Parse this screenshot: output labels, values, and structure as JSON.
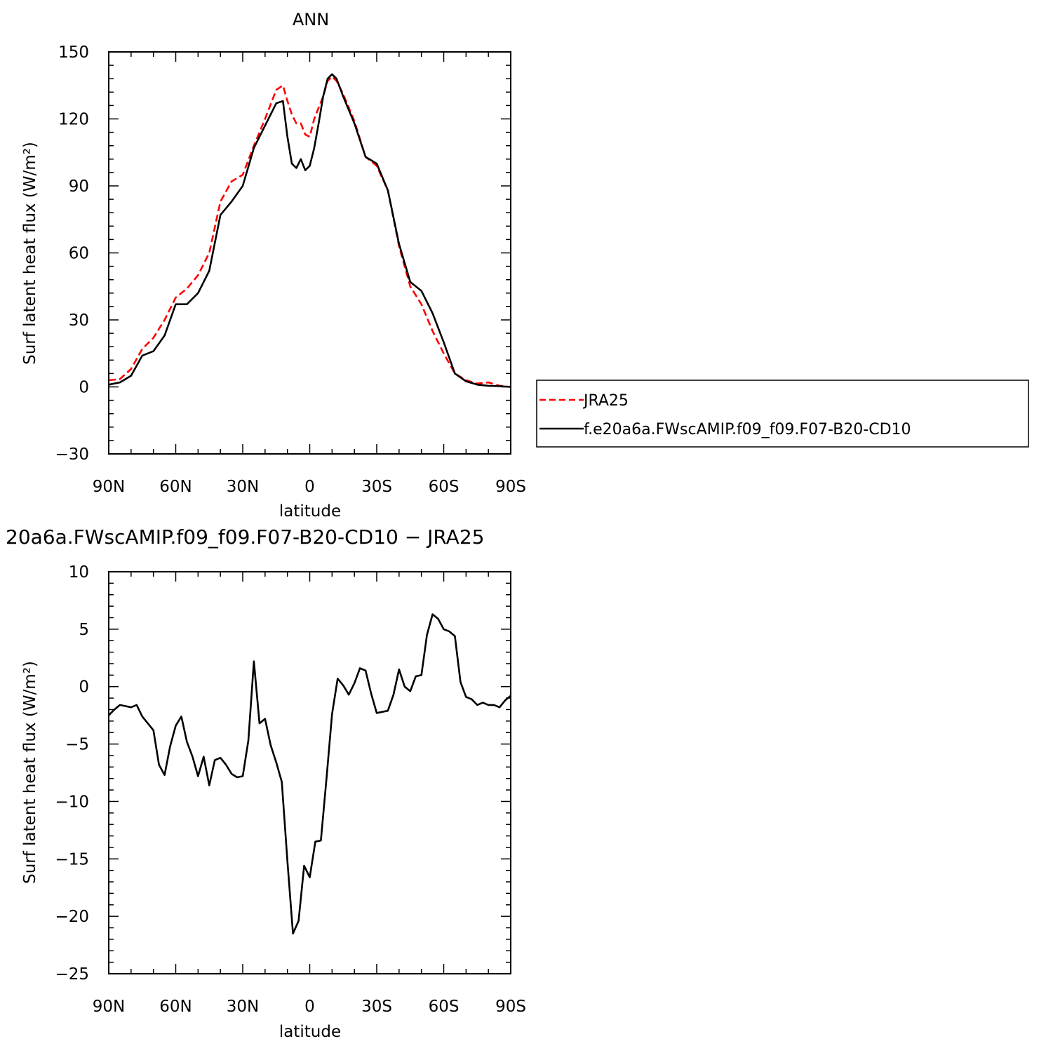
{
  "chart_data": [
    {
      "type": "line",
      "title": "ANN",
      "xlabel": "latitude",
      "ylabel": "Surf latent heat flux (W/m²)",
      "xlim": [
        90,
        -90
      ],
      "ylim": [
        -30,
        150
      ],
      "yticks": [
        -30,
        0,
        30,
        60,
        90,
        120,
        150
      ],
      "xticks": [
        90,
        60,
        30,
        0,
        -30,
        -60,
        -90
      ],
      "xtick_labels": [
        "90N",
        "60N",
        "30N",
        "0",
        "30S",
        "60S",
        "90S"
      ],
      "legend": "right",
      "x": [
        90,
        85,
        80,
        75,
        70,
        65,
        60,
        55,
        50,
        45,
        40,
        35,
        30,
        25,
        20,
        15,
        12,
        10,
        8,
        6,
        4,
        2,
        0,
        -2,
        -4,
        -6,
        -8,
        -10,
        -12,
        -15,
        -20,
        -25,
        -30,
        -35,
        -40,
        -45,
        -50,
        -55,
        -60,
        -65,
        -70,
        -75,
        -80,
        -85,
        -90
      ],
      "series": [
        {
          "name": "JRA25",
          "color": "#ff0000",
          "dash": true,
          "values": [
            3,
            3.5,
            8,
            17,
            22,
            30,
            40,
            44,
            50,
            60,
            83,
            92,
            95,
            108,
            120,
            133,
            135,
            128,
            122,
            118,
            118,
            113,
            112,
            120,
            125,
            130,
            137,
            139,
            137,
            131,
            119,
            103,
            99,
            88,
            63,
            45,
            37,
            25,
            15,
            6,
            3,
            1.5,
            2,
            0.5,
            0
          ]
        },
        {
          "name": "f.e20a6a.FWscAMIP.f09_f09.F07-B20-CD10",
          "color": "#000000",
          "dash": false,
          "values": [
            1,
            2,
            5,
            14,
            16,
            23,
            37,
            37,
            42,
            52,
            77,
            83,
            90,
            107,
            117,
            127,
            128,
            112,
            100,
            98,
            102,
            97,
            99,
            107,
            118,
            130,
            138,
            140,
            138,
            130,
            118,
            103,
            100,
            88,
            64,
            47,
            43,
            33,
            20,
            6,
            2.5,
            1,
            0.5,
            0.3,
            0
          ]
        }
      ]
    },
    {
      "type": "line",
      "title": "20a6a.FWscAMIP.f09_f09.F07-B20-CD10 − JRA25",
      "xlabel": "latitude",
      "ylabel": "Surf latent heat flux (W/m²)",
      "xlim": [
        90,
        -90
      ],
      "ylim": [
        -25,
        10
      ],
      "yticks": [
        -25,
        -20,
        -15,
        -10,
        -5,
        0,
        5,
        10
      ],
      "xticks": [
        90,
        60,
        30,
        0,
        -30,
        -60,
        -90
      ],
      "xtick_labels": [
        "90N",
        "60N",
        "30N",
        "0",
        "30S",
        "60S",
        "90S"
      ],
      "series": [
        {
          "color": "#000000",
          "dash": false,
          "x": [
            90,
            87.5,
            85,
            82.5,
            80,
            77.5,
            75,
            72.5,
            70,
            67.5,
            65,
            62.5,
            60,
            57.5,
            55,
            52.5,
            50,
            47.5,
            45,
            42.5,
            40,
            37.5,
            35,
            32.5,
            30,
            27.5,
            25,
            22.5,
            20,
            17.5,
            15,
            12.5,
            10,
            7.5,
            5,
            2.5,
            0,
            -2.5,
            -5,
            -7.5,
            -10,
            -12.5,
            -15,
            -17.5,
            -20,
            -22.5,
            -25,
            -27.5,
            -30,
            -32.5,
            -35,
            -37.5,
            -40,
            -42.5,
            -45,
            -47.5,
            -50,
            -52.5,
            -55,
            -57.5,
            -60,
            -62.5,
            -65,
            -67.5,
            -70,
            -72.5,
            -75,
            -77.5,
            -80,
            -82.5,
            -85,
            -87.5,
            -90
          ],
          "values": [
            -2.5,
            -2,
            -1.6,
            -1.7,
            -1.8,
            -1.6,
            -2.6,
            -3.2,
            -3.8,
            -6.8,
            -7.7,
            -5.2,
            -3.4,
            -2.6,
            -4.8,
            -6.1,
            -7.8,
            -6.1,
            -8.6,
            -6.4,
            -6.2,
            -6.8,
            -7.6,
            -7.9,
            -7.8,
            -4.7,
            2.2,
            -3.2,
            -2.8,
            -5.1,
            -6.6,
            -8.3,
            -15.2,
            -21.5,
            -20.4,
            -15.6,
            -16.6,
            -13.5,
            -13.4,
            -8,
            -2.4,
            0.7,
            0.1,
            -0.7,
            0.3,
            1.6,
            1.4,
            -0.6,
            -2.3,
            -2.2,
            -2.1,
            -0.7,
            1.5,
            0,
            -0.4,
            0.9,
            1.0,
            4.5,
            6.3,
            5.9,
            5,
            4.8,
            4.4,
            0.4,
            -0.9,
            -1.1,
            -1.6,
            -1.4,
            -1.6,
            -1.6,
            -1.8,
            -1.2,
            -0.8
          ]
        }
      ]
    }
  ]
}
